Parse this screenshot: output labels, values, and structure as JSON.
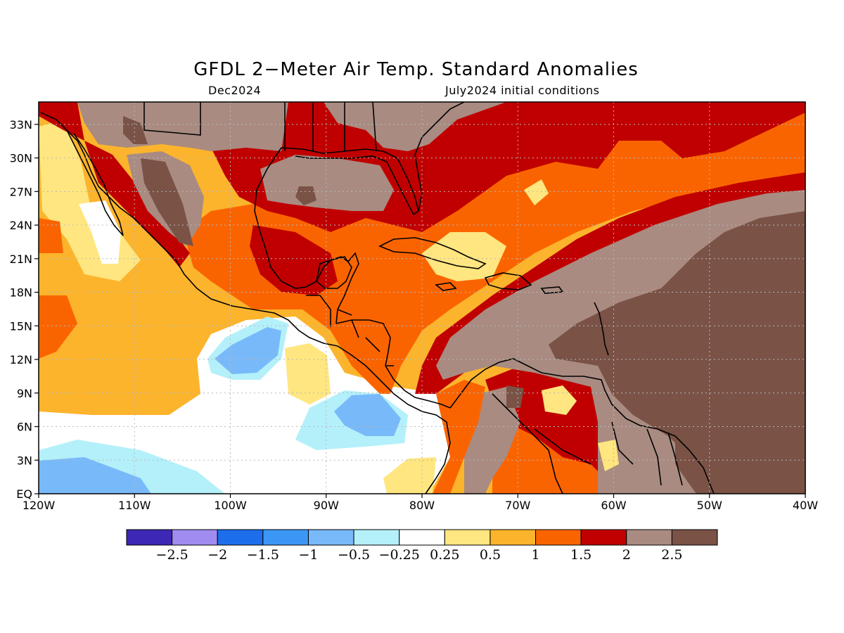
{
  "title": "GFDL 2−Meter Air Temp. Standard Anomalies",
  "subtitle_left": "Dec2024",
  "subtitle_right": "July2024 initial conditions",
  "map": {
    "lon_ticks": [
      "120W",
      "110W",
      "100W",
      "90W",
      "80W",
      "70W",
      "60W",
      "50W",
      "40W"
    ],
    "lat_ticks": [
      "EQ",
      "3N",
      "6N",
      "9N",
      "12N",
      "15N",
      "18N",
      "21N",
      "24N",
      "27N",
      "30N",
      "33N"
    ],
    "colors": {
      "ocean_base": "#fcb42c",
      "white": "#ffffff",
      "light_yellow": "#ffe680",
      "light_blue": "#b4f0fa",
      "mid_blue": "#78b9fa",
      "orange": "#fa6400",
      "red": "#c00000",
      "light_brown": "#a98b81",
      "dark_brown": "#7a5246",
      "coast": "#000000"
    }
  },
  "colorbar": {
    "colors": [
      "#3c28b4",
      "#a08cf0",
      "#1e6eeb",
      "#3c96f5",
      "#78b9fa",
      "#b4f0fa",
      "#ffffff",
      "#ffe680",
      "#fcb42c",
      "#fa6400",
      "#c00000",
      "#a98b81",
      "#7a5246"
    ],
    "labels": [
      "−2.5",
      "−2",
      "−1.5",
      "−1",
      "−0.5",
      "−0.25",
      "0.25",
      "0.5",
      "1",
      "1.5",
      "2",
      "2.5"
    ]
  }
}
